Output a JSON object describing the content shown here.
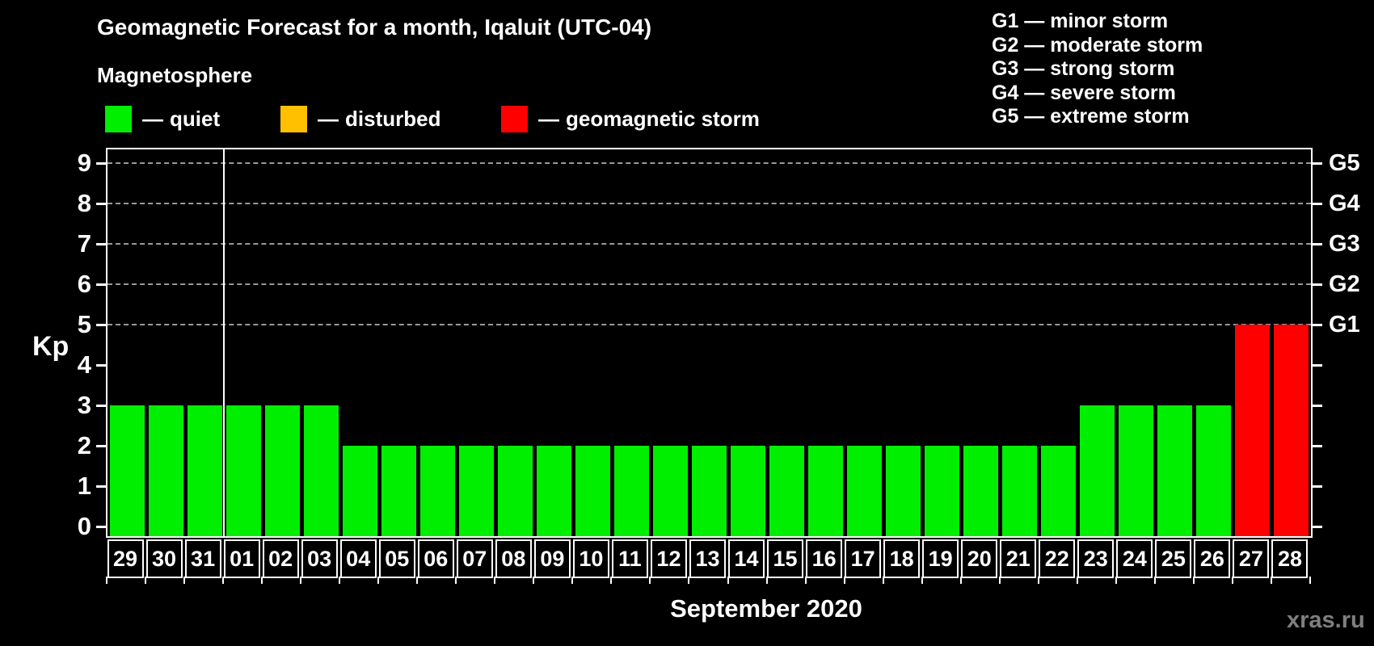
{
  "title": "Geomagnetic Forecast for a month, Iqaluit (UTC-04)",
  "subtitle": "Magnetosphere",
  "legend": {
    "dash": "—",
    "items": [
      {
        "key": "quiet",
        "label": "quiet",
        "color": "#00EE00"
      },
      {
        "key": "disturbed",
        "label": "disturbed",
        "color": "#FFC000"
      },
      {
        "key": "storm",
        "label": "geomagnetic storm",
        "color": "#FF0000"
      }
    ]
  },
  "storm_scale": [
    "G1 — minor storm",
    "G2 — moderate storm",
    "G3 — strong storm",
    "G4 — severe storm",
    "G5 — extreme storm"
  ],
  "axes": {
    "y_label": "Kp",
    "y_ticks": [
      0,
      1,
      2,
      3,
      4,
      5,
      6,
      7,
      8,
      9
    ],
    "right_labels": [
      {
        "code": "G1",
        "kp": 5
      },
      {
        "code": "G2",
        "kp": 6
      },
      {
        "code": "G3",
        "kp": 7
      },
      {
        "code": "G4",
        "kp": 8
      },
      {
        "code": "G5",
        "kp": 9
      }
    ],
    "x_label": "September 2020"
  },
  "watermark": "xras.ru",
  "chart_data": {
    "type": "bar",
    "categories": [
      "29",
      "30",
      "31",
      "01",
      "02",
      "03",
      "04",
      "05",
      "06",
      "07",
      "08",
      "09",
      "10",
      "11",
      "12",
      "13",
      "14",
      "15",
      "16",
      "17",
      "18",
      "19",
      "20",
      "21",
      "22",
      "23",
      "24",
      "25",
      "26",
      "27",
      "28"
    ],
    "values": [
      3,
      3,
      3,
      3,
      3,
      3,
      2,
      2,
      2,
      2,
      2,
      2,
      2,
      2,
      2,
      2,
      2,
      2,
      2,
      2,
      2,
      2,
      2,
      2,
      2,
      3,
      3,
      3,
      3,
      5,
      5
    ],
    "states": [
      "quiet",
      "quiet",
      "quiet",
      "quiet",
      "quiet",
      "quiet",
      "quiet",
      "quiet",
      "quiet",
      "quiet",
      "quiet",
      "quiet",
      "quiet",
      "quiet",
      "quiet",
      "quiet",
      "quiet",
      "quiet",
      "quiet",
      "quiet",
      "quiet",
      "quiet",
      "quiet",
      "quiet",
      "quiet",
      "quiet",
      "quiet",
      "quiet",
      "quiet",
      "storm",
      "storm"
    ],
    "colors": {
      "quiet": "#00EE00",
      "disturbed": "#FFC000",
      "storm": "#FF0000"
    },
    "grid_color": "#999999",
    "ylim": [
      0,
      9
    ],
    "grid_kp_levels": [
      5,
      6,
      7,
      8,
      9
    ],
    "month_separator_after": "31",
    "title": "Geomagnetic Forecast for a month, Iqaluit (UTC-04)",
    "xlabel": "September 2020",
    "ylabel": "Kp",
    "legend_position": "top"
  }
}
